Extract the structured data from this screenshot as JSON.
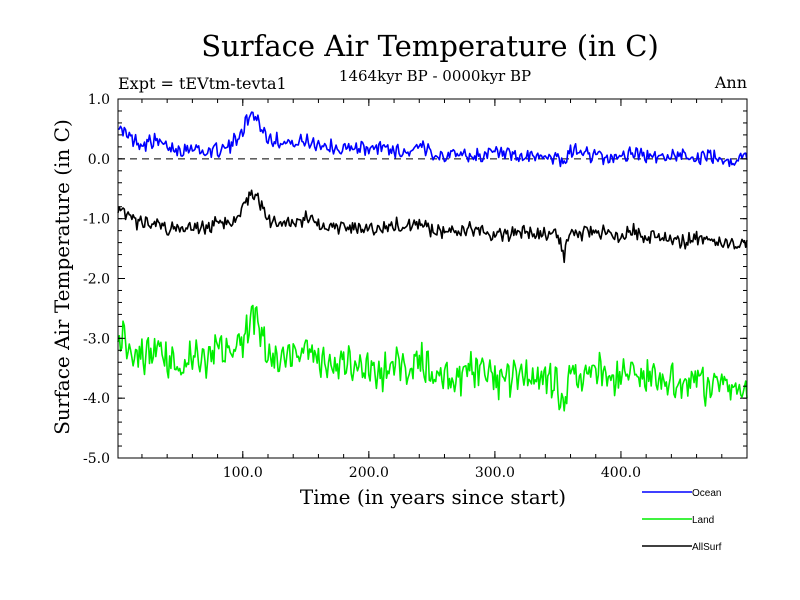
{
  "chart_data": {
    "type": "line",
    "title": "Surface Air Temperature (in C)",
    "subtitle": "1464kyr BP - 0000kyr BP",
    "experiment_label": "Expt = tEVtm-tevta1",
    "season_label": "Ann",
    "xlabel": "Time (in years since start)",
    "ylabel": "Surface Air Temperature (in C)",
    "xlim": [
      1,
      500
    ],
    "ylim": [
      -5.0,
      1.0
    ],
    "xticks": [
      {
        "value": 100,
        "label": "100.0"
      },
      {
        "value": 200,
        "label": "200.0"
      },
      {
        "value": 300,
        "label": "300.0"
      },
      {
        "value": 400,
        "label": "400.0"
      }
    ],
    "yticks": [
      {
        "value": 1.0,
        "label": "1.0"
      },
      {
        "value": 0.0,
        "label": "0.0"
      },
      {
        "value": -1.0,
        "label": "-1.0"
      },
      {
        "value": -2.0,
        "label": "-2.0"
      },
      {
        "value": -3.0,
        "label": "-3.0"
      },
      {
        "value": -4.0,
        "label": "-4.0"
      },
      {
        "value": -5.0,
        "label": "-5.0"
      }
    ],
    "reference_line": {
      "value": 0.0,
      "style": "dashed"
    },
    "x": [
      1,
      10,
      20,
      30,
      40,
      50,
      60,
      70,
      80,
      90,
      100,
      105,
      110,
      115,
      120,
      130,
      140,
      150,
      160,
      170,
      180,
      190,
      200,
      210,
      220,
      230,
      240,
      250,
      260,
      270,
      280,
      290,
      300,
      310,
      320,
      330,
      340,
      350,
      355,
      360,
      370,
      380,
      390,
      400,
      410,
      420,
      430,
      440,
      450,
      460,
      470,
      480,
      490,
      500
    ],
    "series": [
      {
        "name": "Ocean",
        "color": "#0000ff",
        "values": [
          0.55,
          0.35,
          0.25,
          0.3,
          0.2,
          0.15,
          0.2,
          0.1,
          0.15,
          0.2,
          0.5,
          0.7,
          0.75,
          0.5,
          0.35,
          0.3,
          0.25,
          0.3,
          0.25,
          0.2,
          0.15,
          0.2,
          0.15,
          0.2,
          0.15,
          0.1,
          0.2,
          0.1,
          0.05,
          0.1,
          0.05,
          0.05,
          0.1,
          0.05,
          0.0,
          0.05,
          0.05,
          0.0,
          -0.1,
          0.15,
          0.1,
          0.05,
          0.0,
          0.05,
          0.1,
          0.05,
          0.0,
          0.05,
          0.1,
          0.0,
          0.05,
          0.0,
          -0.05,
          0.05
        ]
      },
      {
        "name": "Land",
        "color": "#00ee00",
        "values": [
          -2.9,
          -3.1,
          -3.3,
          -3.2,
          -3.4,
          -3.5,
          -3.3,
          -3.4,
          -3.2,
          -3.3,
          -3.0,
          -2.7,
          -2.6,
          -2.9,
          -3.3,
          -3.4,
          -3.3,
          -3.2,
          -3.4,
          -3.5,
          -3.4,
          -3.5,
          -3.5,
          -3.6,
          -3.4,
          -3.5,
          -3.3,
          -3.6,
          -3.6,
          -3.7,
          -3.5,
          -3.6,
          -3.7,
          -3.7,
          -3.6,
          -3.7,
          -3.7,
          -3.8,
          -4.1,
          -3.6,
          -3.7,
          -3.5,
          -3.6,
          -3.7,
          -3.5,
          -3.7,
          -3.6,
          -3.7,
          -3.8,
          -3.7,
          -3.9,
          -3.7,
          -3.9,
          -3.7
        ]
      },
      {
        "name": "AllSurf",
        "color": "#000000",
        "values": [
          -0.8,
          -1.0,
          -1.1,
          -1.05,
          -1.15,
          -1.2,
          -1.1,
          -1.15,
          -1.05,
          -1.1,
          -0.85,
          -0.6,
          -0.55,
          -0.8,
          -1.05,
          -1.1,
          -1.05,
          -1.0,
          -1.1,
          -1.15,
          -1.1,
          -1.15,
          -1.15,
          -1.2,
          -1.1,
          -1.15,
          -1.05,
          -1.2,
          -1.2,
          -1.25,
          -1.15,
          -1.2,
          -1.25,
          -1.25,
          -1.2,
          -1.25,
          -1.25,
          -1.3,
          -1.6,
          -1.2,
          -1.25,
          -1.2,
          -1.25,
          -1.3,
          -1.2,
          -1.3,
          -1.3,
          -1.35,
          -1.4,
          -1.3,
          -1.4,
          -1.35,
          -1.45,
          -1.4
        ]
      }
    ],
    "legend": {
      "position": "bottom-right",
      "entries": [
        "Ocean",
        "Land",
        "AllSurf"
      ]
    }
  }
}
